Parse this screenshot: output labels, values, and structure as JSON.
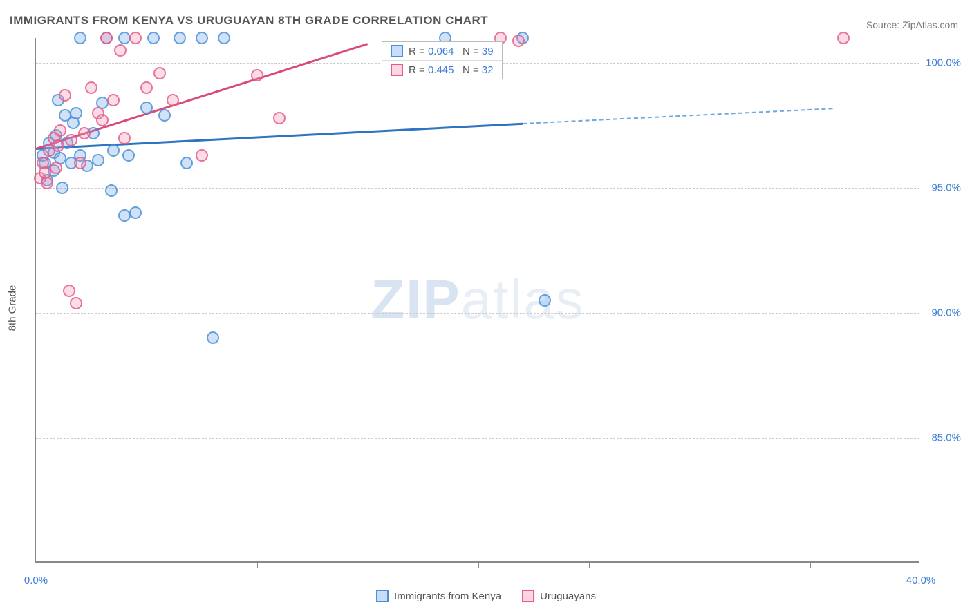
{
  "title": "IMMIGRANTS FROM KENYA VS URUGUAYAN 8TH GRADE CORRELATION CHART",
  "source_label": "Source: ",
  "source_name": "ZipAtlas.com",
  "watermark_bold": "ZIP",
  "watermark_light": "atlas",
  "chart": {
    "type": "scatter",
    "y_axis_title": "8th Grade",
    "x_range": [
      0,
      40
    ],
    "y_range": [
      80,
      101
    ],
    "y_ticks": [
      {
        "value": 100.0,
        "label": "100.0%"
      },
      {
        "value": 95.0,
        "label": "95.0%"
      },
      {
        "value": 90.0,
        "label": "90.0%"
      },
      {
        "value": 85.0,
        "label": "85.0%"
      }
    ],
    "x_ticks_major": [
      0,
      40
    ],
    "x_tick_labels": [
      {
        "value": 0,
        "label": "0.0%"
      },
      {
        "value": 40,
        "label": "40.0%"
      }
    ],
    "x_ticks_minor": [
      5,
      10,
      15,
      20,
      25,
      30,
      35
    ],
    "grid_color": "#cccccc",
    "background_color": "#ffffff",
    "series": [
      {
        "name": "Immigrants from Kenya",
        "color_stroke": "#4a90d9",
        "color_fill": "rgba(100,160,230,0.35)",
        "marker_radius": 9,
        "r_value": "0.064",
        "n_value": "39",
        "trend": {
          "x1": 0,
          "y1": 96.6,
          "x2": 22,
          "y2": 97.6,
          "solid": true,
          "color": "#2f74c0",
          "width": 2.5
        },
        "trend_ext": {
          "x1": 22,
          "y1": 97.6,
          "x2": 36,
          "y2": 98.2,
          "solid": false,
          "color": "#6fa6dd",
          "width": 2
        },
        "points": [
          [
            0.3,
            96.3
          ],
          [
            0.4,
            96.0
          ],
          [
            0.6,
            96.8
          ],
          [
            0.8,
            95.7
          ],
          [
            0.8,
            96.4
          ],
          [
            0.9,
            97.1
          ],
          [
            1.0,
            98.5
          ],
          [
            1.1,
            96.2
          ],
          [
            1.2,
            95.0
          ],
          [
            1.4,
            96.8
          ],
          [
            1.6,
            96.0
          ],
          [
            1.7,
            97.6
          ],
          [
            1.8,
            98.0
          ],
          [
            2.0,
            96.3
          ],
          [
            2.0,
            101.0
          ],
          [
            2.3,
            95.9
          ],
          [
            2.6,
            97.2
          ],
          [
            2.8,
            96.1
          ],
          [
            3.0,
            98.4
          ],
          [
            3.2,
            101.0
          ],
          [
            3.4,
            94.9
          ],
          [
            3.5,
            96.5
          ],
          [
            4.0,
            101.0
          ],
          [
            4.0,
            93.9
          ],
          [
            4.2,
            96.3
          ],
          [
            4.5,
            94.0
          ],
          [
            5.0,
            98.2
          ],
          [
            5.3,
            101.0
          ],
          [
            5.8,
            97.9
          ],
          [
            6.5,
            101.0
          ],
          [
            6.8,
            96.0
          ],
          [
            7.5,
            101.0
          ],
          [
            8.0,
            89.0
          ],
          [
            8.5,
            101.0
          ],
          [
            18.5,
            101.0
          ],
          [
            22.0,
            101.0
          ],
          [
            23.0,
            90.5
          ],
          [
            0.5,
            95.3
          ],
          [
            1.3,
            97.9
          ]
        ]
      },
      {
        "name": "Uruguayans",
        "color_stroke": "#e85a8a",
        "color_fill": "rgba(240,140,170,0.35)",
        "marker_radius": 9,
        "r_value": "0.445",
        "n_value": "32",
        "trend": {
          "x1": 0,
          "y1": 96.6,
          "x2": 15,
          "y2": 100.8,
          "solid": true,
          "color": "#d94a78",
          "width": 2.5
        },
        "points": [
          [
            0.2,
            95.4
          ],
          [
            0.3,
            96.0
          ],
          [
            0.4,
            95.6
          ],
          [
            0.5,
            95.2
          ],
          [
            0.6,
            96.5
          ],
          [
            0.8,
            97.0
          ],
          [
            0.9,
            95.8
          ],
          [
            1.0,
            96.7
          ],
          [
            1.1,
            97.3
          ],
          [
            1.3,
            98.7
          ],
          [
            1.5,
            90.9
          ],
          [
            1.6,
            96.9
          ],
          [
            1.8,
            90.4
          ],
          [
            2.0,
            96.0
          ],
          [
            2.2,
            97.2
          ],
          [
            2.5,
            99.0
          ],
          [
            2.8,
            98.0
          ],
          [
            3.0,
            97.7
          ],
          [
            3.2,
            101.0
          ],
          [
            3.5,
            98.5
          ],
          [
            3.8,
            100.5
          ],
          [
            4.0,
            97.0
          ],
          [
            4.5,
            101.0
          ],
          [
            5.0,
            99.0
          ],
          [
            5.6,
            99.6
          ],
          [
            6.2,
            98.5
          ],
          [
            7.5,
            96.3
          ],
          [
            10.0,
            99.5
          ],
          [
            11.0,
            97.8
          ],
          [
            21.0,
            101.0
          ],
          [
            21.8,
            100.9
          ],
          [
            36.5,
            101.0
          ]
        ]
      }
    ],
    "stats_legend": {
      "r_label": "R =",
      "n_label": "N ="
    },
    "bottom_legend_labels": [
      "Immigrants from Kenya",
      "Uruguayans"
    ]
  }
}
